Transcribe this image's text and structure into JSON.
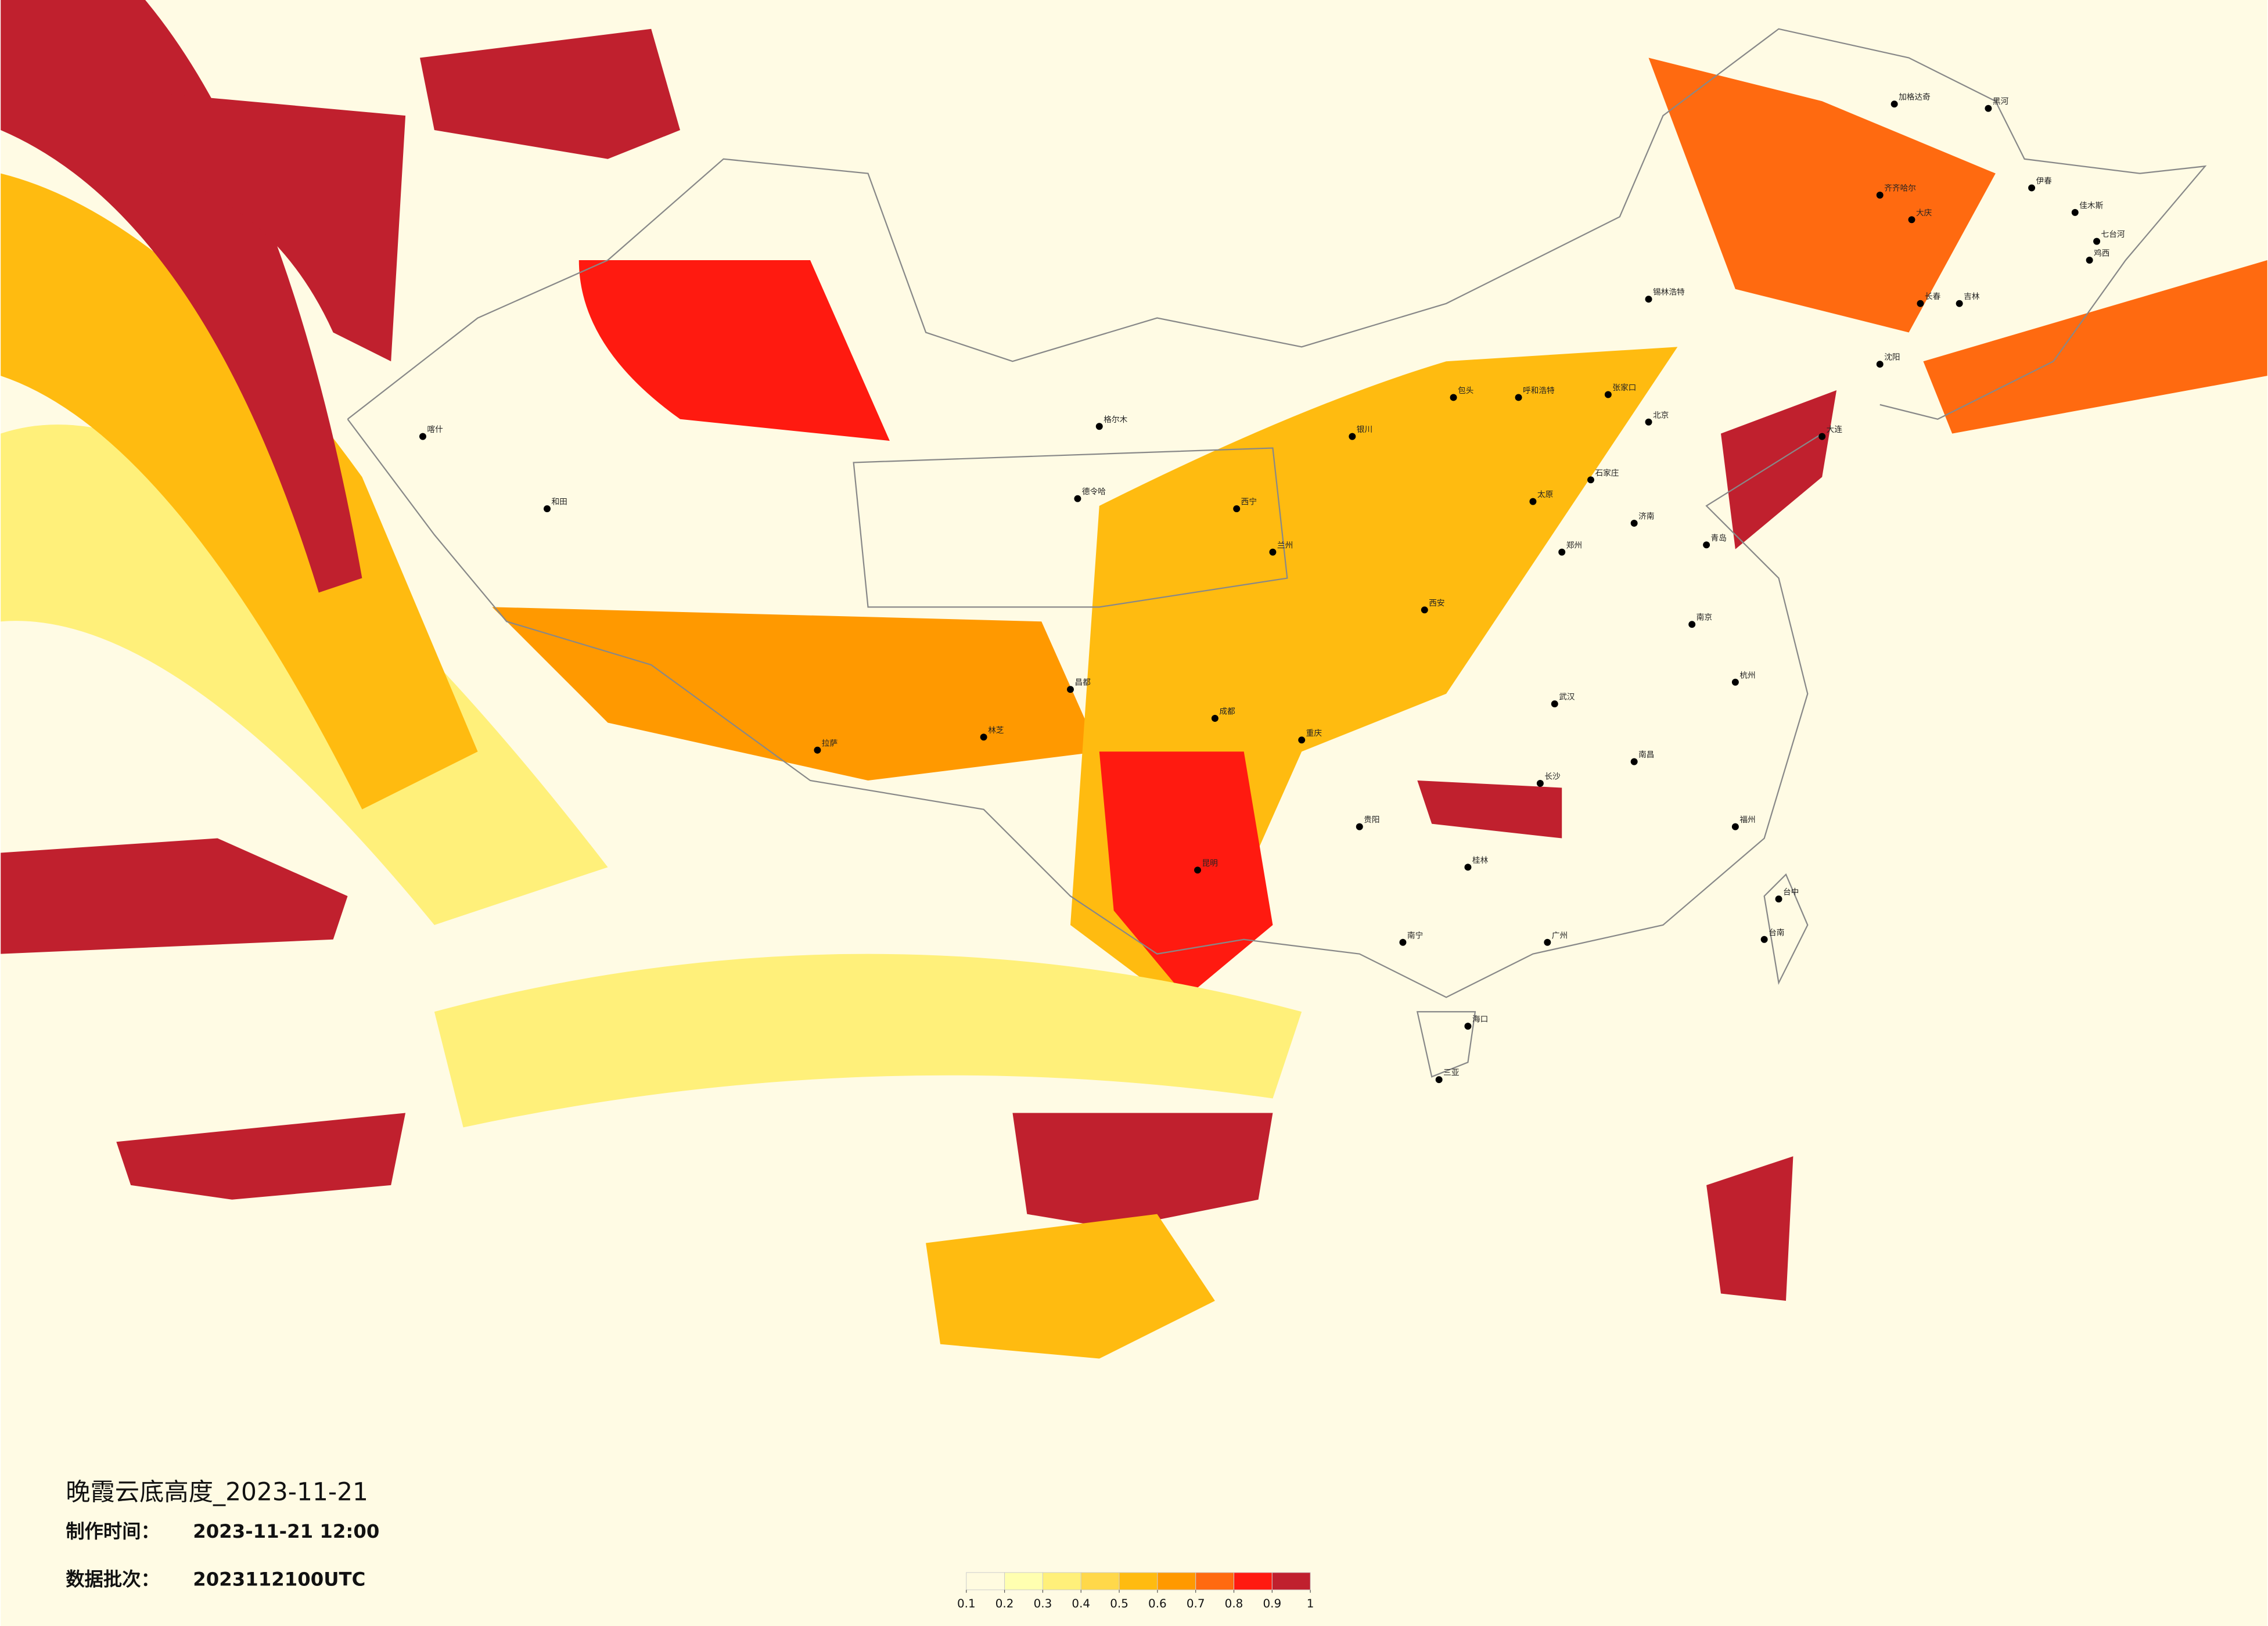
{
  "title": "晚霞云底高度_2023-11-21",
  "info": [
    {
      "label": "制作时间：",
      "value": "2023-11-21 12:00"
    },
    {
      "label": "数据批次：",
      "value": "2023112100UTC"
    }
  ],
  "colorbar": {
    "range": [
      0.1,
      1
    ],
    "ticks": [
      0.1,
      0.2,
      0.3,
      0.4,
      0.5,
      0.6,
      0.7,
      0.8,
      0.9,
      1
    ],
    "colors": [
      "#fffbe0",
      "#ffffb0",
      "#fff07a",
      "#ffd84a",
      "#ffbb10",
      "#ff9900",
      "#ff6a10",
      "#ff1a10",
      "#c0202e"
    ]
  },
  "cities": [
    "加格达奇",
    "黑河",
    "齐齐哈尔",
    "伊春",
    "大庆",
    "佳木斯",
    "七台河",
    "鸡西",
    "长春",
    "吉林",
    "锡林浩特",
    "呼和浩特",
    "包头",
    "张家口",
    "北京",
    "石家庄",
    "太原",
    "银川",
    "西宁",
    "兰州",
    "喀什",
    "和田",
    "格尔木",
    "德令哈",
    "拉萨",
    "林芝",
    "昌都",
    "成都",
    "重庆",
    "西安",
    "武汉",
    "郑州",
    "长沙",
    "南昌",
    "贵阳",
    "昆明",
    "南宁",
    "桂林",
    "广州",
    "福州",
    "台中",
    "台南",
    "海口",
    "三亚",
    "杭州",
    "南京",
    "济南",
    "青岛",
    "沈阳",
    "大连"
  ]
}
